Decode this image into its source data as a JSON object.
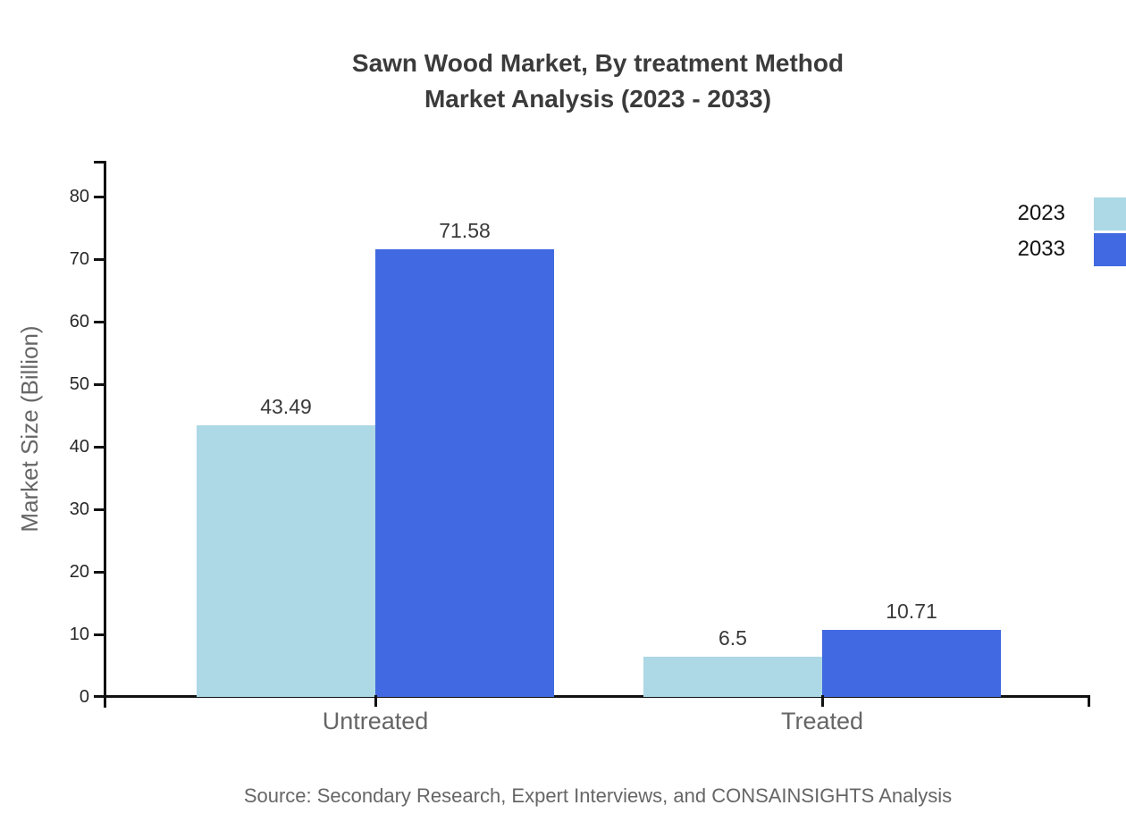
{
  "title": {
    "line1": "Sawn Wood Market, By treatment Method",
    "line2": "Market Analysis (2023 - 2033)"
  },
  "source": "Source: Secondary Research, Expert Interviews, and CONSAINSIGHTS Analysis",
  "chart_data": {
    "type": "bar",
    "title": "Sawn Wood Market, By treatment Method Market Analysis (2023 - 2033)",
    "categories": [
      "Untreated",
      "Treated"
    ],
    "series": [
      {
        "name": "2023",
        "color": "#ADD8E6",
        "values": [
          43.49,
          6.5
        ]
      },
      {
        "name": "2033",
        "color": "#4169E1",
        "values": [
          71.58,
          10.71
        ]
      }
    ],
    "value_labels": [
      [
        "43.49",
        "6.5"
      ],
      [
        "71.58",
        "10.71"
      ]
    ],
    "xlabel": "",
    "ylabel": "Market Size (Billion)",
    "ylim": [
      0,
      80
    ],
    "ytick_step": 10,
    "yticks": [
      0,
      10,
      20,
      30,
      40,
      50,
      60,
      70,
      80
    ],
    "grid": false,
    "legend_position": "top-right",
    "axis_color": "#111111",
    "label_color": "#3a3a3a",
    "category_color": "#666666"
  }
}
